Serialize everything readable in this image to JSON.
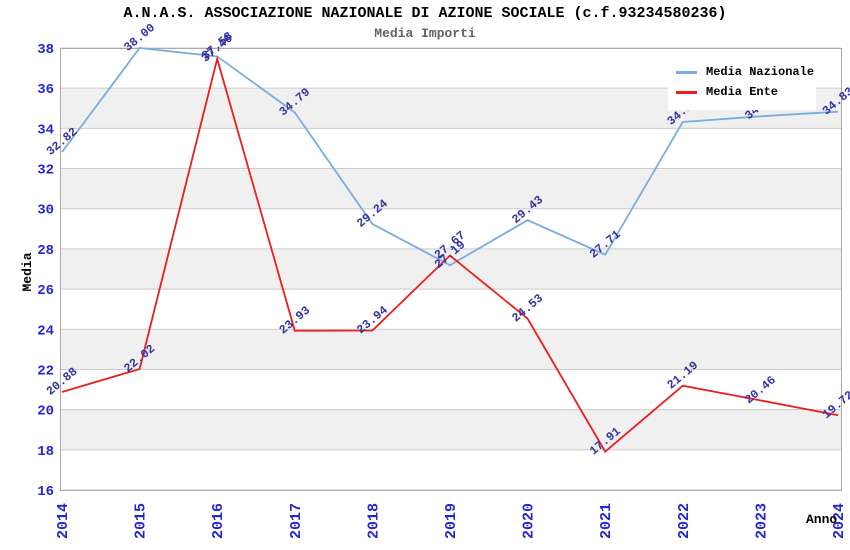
{
  "header": {
    "title": "A.N.A.S. ASSOCIAZIONE NAZIONALE DI AZIONE SOCIALE (c.f.93234580236)",
    "subtitle": "Media Importi"
  },
  "chart_data": {
    "type": "line",
    "title": "A.N.A.S. ASSOCIAZIONE NAZIONALE DI AZIONE SOCIALE (c.f.93234580236)",
    "subtitle": "Media Importi",
    "xlabel": "Anno",
    "ylabel": "Media",
    "x": [
      "2014",
      "2015",
      "2016",
      "2017",
      "2018",
      "2019",
      "2020",
      "2021",
      "2022",
      "2023",
      "2024"
    ],
    "ylim": [
      16,
      38
    ],
    "ytick_step": 2,
    "grid": "horizontal-only",
    "alt_row_bands": true,
    "legend_position": "top-right",
    "series": [
      {
        "name": "Media Nazionale",
        "color": "#79ade1",
        "values": [
          32.82,
          38.0,
          37.58,
          34.79,
          29.24,
          27.19,
          29.43,
          27.71,
          34.32,
          34.6,
          34.83
        ]
      },
      {
        "name": "Media Ente",
        "color": "#ee1c1c",
        "values": [
          20.88,
          22.02,
          37.46,
          23.93,
          23.94,
          27.67,
          24.53,
          17.91,
          21.19,
          20.46,
          19.72
        ]
      }
    ],
    "colors": {
      "tick_label": "#2525d4",
      "data_label": "#3333a3",
      "grid_line": "#cccccc",
      "band_gray": "#f0f0f0",
      "plot_border": "#aaaaaa",
      "axis_title": "#000000"
    }
  }
}
